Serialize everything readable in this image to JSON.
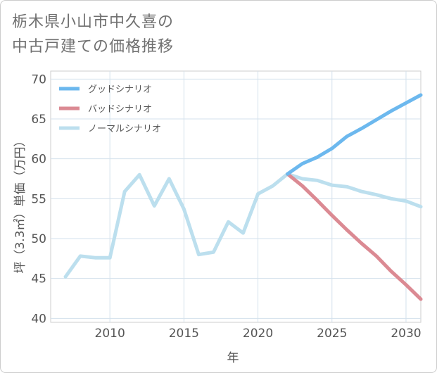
{
  "title": {
    "line1": "栃木県小山市中久喜の",
    "line2": "中古戸建ての価格推移"
  },
  "chart_data": {
    "type": "line",
    "xlabel": "年",
    "ylabel": "坪（3.3㎡）単価（万円）",
    "xlim": [
      2006,
      2031
    ],
    "ylim": [
      39.5,
      71
    ],
    "x_ticks": [
      2010,
      2015,
      2020,
      2025,
      2030
    ],
    "y_ticks": [
      40,
      45,
      50,
      55,
      60,
      65,
      70
    ],
    "grid": true,
    "legend_position": "top-left",
    "series": [
      {
        "name": "グッドシナリオ",
        "color": "#6cb8ee",
        "x": [
          2022,
          2023,
          2024,
          2025,
          2026,
          2027,
          2028,
          2029,
          2030,
          2031
        ],
        "y": [
          58.1,
          59.4,
          60.2,
          61.3,
          62.8,
          63.8,
          64.9,
          66.0,
          67.0,
          68.0
        ]
      },
      {
        "name": "バッドシナリオ",
        "color": "#db8a93",
        "x": [
          2022,
          2023,
          2024,
          2025,
          2026,
          2027,
          2028,
          2029,
          2030,
          2031
        ],
        "y": [
          58.1,
          56.6,
          54.8,
          52.9,
          51.1,
          49.4,
          47.8,
          45.9,
          44.2,
          42.4
        ]
      },
      {
        "name": "ノーマルシナリオ",
        "color": "#bcdfee",
        "x": [
          2007,
          2008,
          2009,
          2010,
          2011,
          2012,
          2013,
          2014,
          2015,
          2016,
          2017,
          2018,
          2019,
          2020,
          2021,
          2022,
          2023,
          2024,
          2025,
          2026,
          2027,
          2028,
          2029,
          2030,
          2031
        ],
        "y": [
          45.2,
          47.8,
          47.6,
          47.6,
          55.9,
          58.0,
          54.1,
          57.5,
          53.7,
          48.0,
          48.3,
          52.1,
          50.7,
          55.6,
          56.6,
          58.1,
          57.5,
          57.3,
          56.7,
          56.5,
          55.9,
          55.5,
          55.0,
          54.7,
          54.0
        ]
      }
    ]
  }
}
